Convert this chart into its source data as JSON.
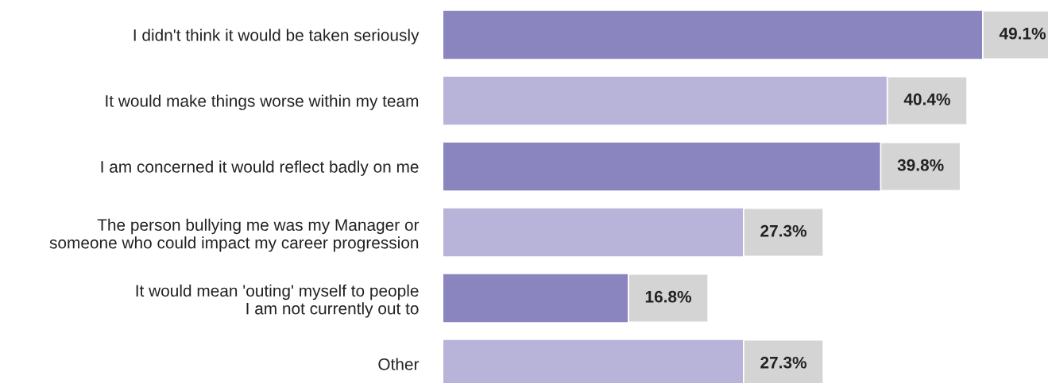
{
  "chart_data": {
    "type": "bar",
    "orientation": "horizontal",
    "data_labels": true,
    "legend": false,
    "grid": false,
    "categories": [
      "I didn't think it would be taken seriously",
      "It would make things worse within my team",
      "I am concerned it would reflect badly on me",
      "The person bullying me was my Manager or\nsomeone who could impact my career progression",
      "It would mean 'outing' myself to people\nI am not currently out to",
      "Other"
    ],
    "values": [
      49.1,
      40.4,
      39.8,
      27.3,
      16.8,
      27.3
    ],
    "value_labels": [
      "49.1%",
      "40.4%",
      "39.8%",
      "27.3%",
      "16.8%",
      "27.3%"
    ],
    "colors": [
      "#8a84bf",
      "#b8b3d9",
      "#8a84bf",
      "#b8b3d9",
      "#8a84bf",
      "#b8b3d9"
    ]
  }
}
